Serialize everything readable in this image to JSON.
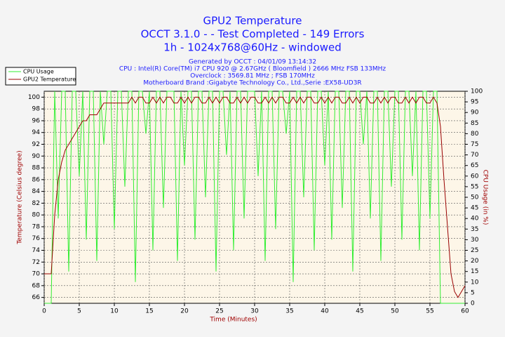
{
  "chart_data": {
    "type": "line",
    "title": [
      "GPU2 Temperature",
      "OCCT 3.1.0 -  - Test Completed - 149 Errors",
      "1h - 1024x768@60Hz - windowed"
    ],
    "subtitle": [
      "Generated by OCCT : 04/01/09 13:14:32",
      "CPU : Intel(R) Core(TM) i7 CPU 920 @ 2.67GHz ( Bloomfield ) 2666 MHz FSB 133MHz",
      "Overclock : 3569.81 MHz ; FSB 170MHz",
      "Motherboard Brand :Gigabyte Technology Co., Ltd.,Serie :EX58-UD3R"
    ],
    "xlabel": "Time (Minutes)",
    "ylabel": "Temperature (Celsius degree)",
    "y2label": "CPU Usage (in %)",
    "x": [
      0,
      0.5,
      1,
      1.5,
      2,
      2.5,
      3,
      3.5,
      4,
      4.5,
      5,
      5.5,
      6,
      6.5,
      7,
      7.5,
      8,
      8.5,
      9,
      9.5,
      10,
      10.5,
      11,
      11.5,
      12,
      12.5,
      13,
      13.5,
      14,
      14.5,
      15,
      15.5,
      16,
      16.5,
      17,
      17.5,
      18,
      18.5,
      19,
      19.5,
      20,
      20.5,
      21,
      21.5,
      22,
      22.5,
      23,
      23.5,
      24,
      24.5,
      25,
      25.5,
      26,
      26.5,
      27,
      27.5,
      28,
      28.5,
      29,
      29.5,
      30,
      30.5,
      31,
      31.5,
      32,
      32.5,
      33,
      33.5,
      34,
      34.5,
      35,
      35.5,
      36,
      36.5,
      37,
      37.5,
      38,
      38.5,
      39,
      39.5,
      40,
      40.5,
      41,
      41.5,
      42,
      42.5,
      43,
      43.5,
      44,
      44.5,
      45,
      45.5,
      46,
      46.5,
      47,
      47.5,
      48,
      48.5,
      49,
      49.5,
      50,
      50.5,
      51,
      51.5,
      52,
      52.5,
      53,
      53.5,
      54,
      54.5,
      55,
      55.5,
      56,
      56.5,
      57,
      57.5,
      58,
      58.5,
      59,
      59.5,
      60
    ],
    "series": [
      {
        "name": "CPU Usage",
        "color": "#33ee33",
        "axis": "y2",
        "values": [
          0,
          0,
          0,
          100,
          40,
          100,
          100,
          15,
          100,
          100,
          60,
          100,
          30,
          100,
          100,
          20,
          100,
          75,
          100,
          100,
          35,
          100,
          100,
          55,
          100,
          100,
          10,
          100,
          100,
          80,
          100,
          25,
          100,
          100,
          45,
          100,
          100,
          100,
          20,
          100,
          65,
          100,
          100,
          30,
          100,
          100,
          50,
          100,
          100,
          15,
          100,
          100,
          70,
          100,
          25,
          100,
          100,
          40,
          100,
          100,
          100,
          60,
          100,
          20,
          100,
          100,
          35,
          100,
          100,
          80,
          100,
          10,
          100,
          100,
          50,
          100,
          100,
          25,
          100,
          100,
          65,
          100,
          30,
          100,
          100,
          45,
          100,
          100,
          15,
          100,
          100,
          75,
          100,
          40,
          100,
          100,
          20,
          100,
          100,
          55,
          100,
          100,
          30,
          100,
          100,
          60,
          100,
          25,
          100,
          100,
          40,
          100,
          100,
          0,
          0,
          0,
          0,
          0,
          0,
          0,
          0
        ]
      },
      {
        "name": "GPU2 Temperature",
        "color": "#990000",
        "values": [
          70,
          70,
          70,
          80,
          86,
          89,
          91,
          92,
          93,
          94,
          95,
          96,
          96,
          97,
          97,
          97,
          98,
          99,
          99,
          99,
          99,
          99,
          99,
          99,
          99,
          100,
          99,
          100,
          100,
          99,
          99,
          100,
          99,
          100,
          99,
          100,
          100,
          99,
          99,
          100,
          99,
          100,
          99,
          100,
          100,
          99,
          99,
          100,
          99,
          100,
          99,
          100,
          100,
          99,
          99,
          100,
          99,
          100,
          99,
          100,
          100,
          99,
          99,
          100,
          99,
          100,
          99,
          100,
          100,
          99,
          99,
          100,
          99,
          100,
          99,
          100,
          100,
          99,
          99,
          100,
          99,
          100,
          99,
          100,
          100,
          99,
          99,
          100,
          99,
          100,
          99,
          100,
          100,
          99,
          99,
          100,
          99,
          100,
          99,
          100,
          100,
          99,
          99,
          100,
          99,
          100,
          99,
          100,
          100,
          99,
          99,
          100,
          99,
          95,
          86,
          78,
          70,
          67,
          66,
          67,
          68
        ]
      }
    ],
    "xlim": [
      0,
      60
    ],
    "xticks": [
      0,
      5,
      10,
      15,
      20,
      25,
      30,
      35,
      40,
      45,
      50,
      55,
      60
    ],
    "ylim": [
      65,
      101
    ],
    "yticks": [
      66,
      68,
      70,
      72,
      74,
      76,
      78,
      80,
      82,
      84,
      86,
      88,
      90,
      92,
      94,
      96,
      98,
      100
    ],
    "y2lim": [
      0,
      100
    ],
    "y2ticks": [
      0,
      5,
      10,
      15,
      20,
      25,
      30,
      35,
      40,
      45,
      50,
      55,
      60,
      65,
      70,
      75,
      80,
      85,
      90,
      95,
      100
    ],
    "grid": true,
    "legend": "top-left"
  }
}
